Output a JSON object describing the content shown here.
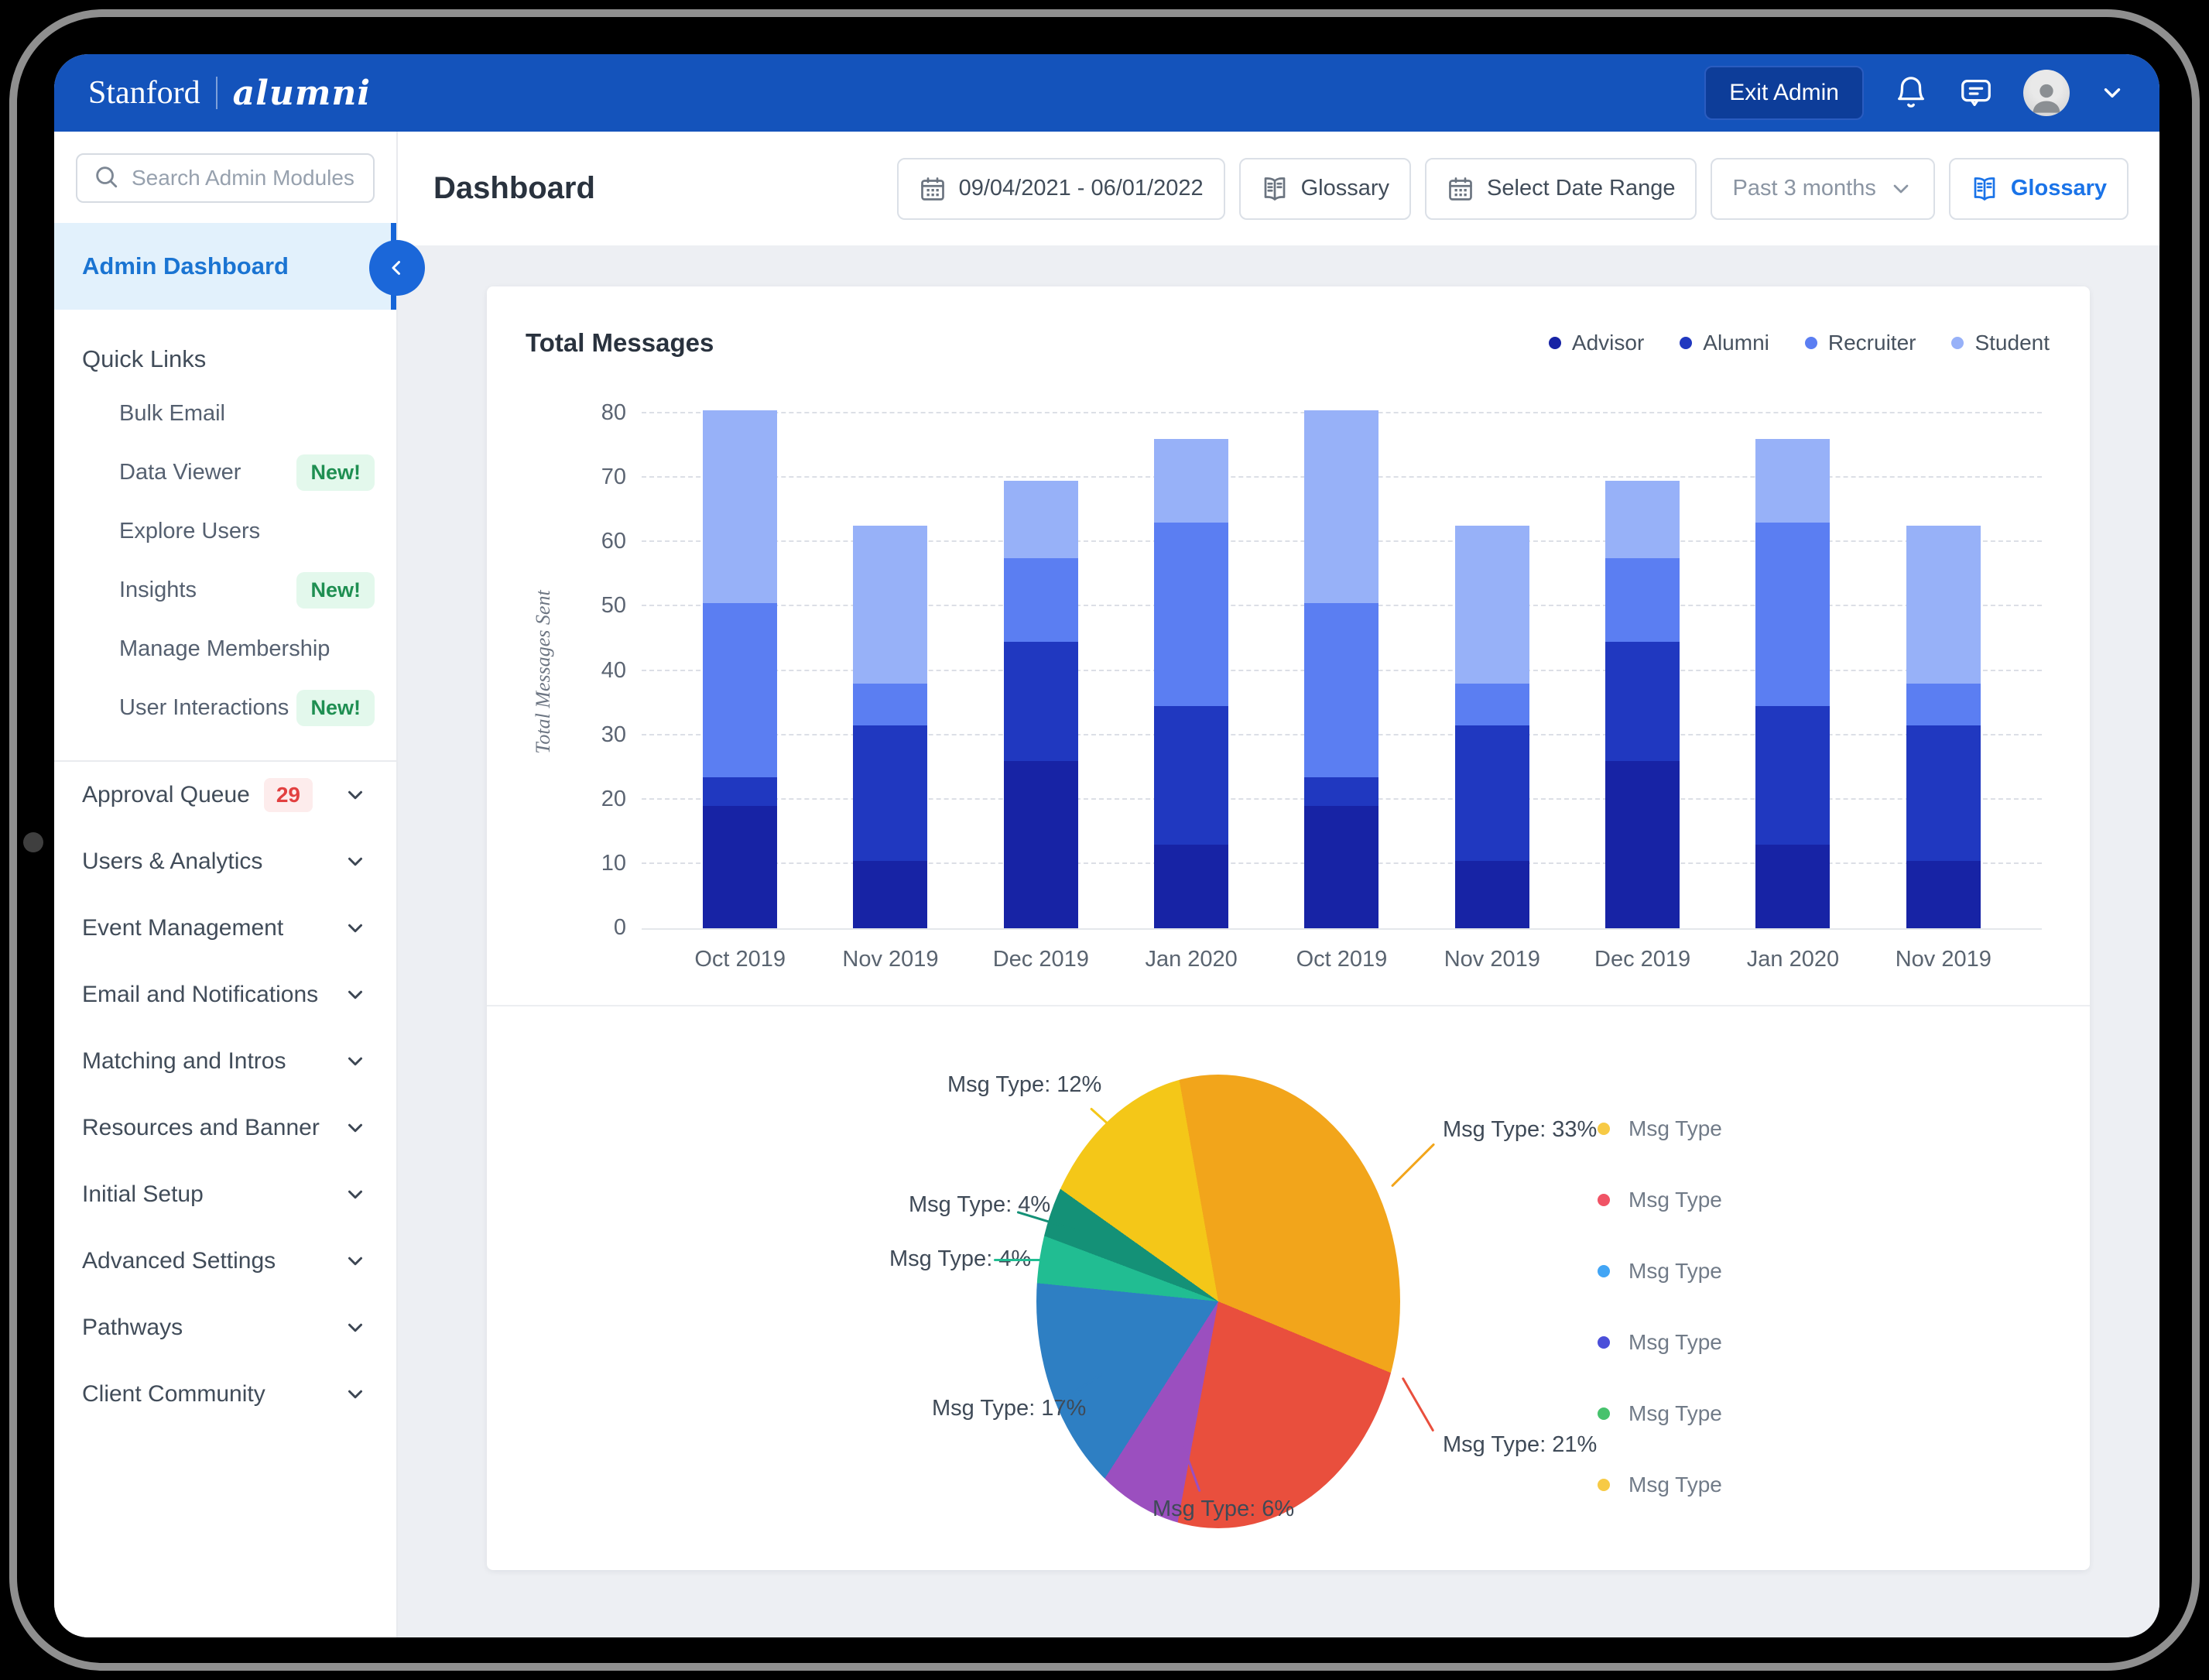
{
  "topbar": {
    "brand_primary": "Stanford",
    "brand_secondary": "alumni",
    "exit_admin_label": "Exit Admin"
  },
  "sidebar": {
    "search_placeholder": "Search Admin Modules",
    "active_item": "Admin Dashboard",
    "quick_links_header": "Quick Links",
    "quick_links": [
      {
        "label": "Bulk Email"
      },
      {
        "label": "Data Viewer",
        "badge": "New!"
      },
      {
        "label": "Explore Users"
      },
      {
        "label": "Insights",
        "badge": "New!"
      },
      {
        "label": "Manage Membership"
      },
      {
        "label": "User Interactions",
        "badge": "New!"
      }
    ],
    "sections": [
      {
        "label": "Approval Queue",
        "count": "29"
      },
      {
        "label": "Users & Analytics"
      },
      {
        "label": "Event Management"
      },
      {
        "label": "Email and Notifications"
      },
      {
        "label": "Matching and Intros"
      },
      {
        "label": "Resources and Banner"
      },
      {
        "label": "Initial Setup"
      },
      {
        "label": "Advanced Settings"
      },
      {
        "label": "Pathways"
      },
      {
        "label": "Client Community"
      }
    ]
  },
  "header": {
    "title": "Dashboard",
    "date_range_label": "09/04/2021 - 06/01/2022",
    "glossary_label": "Glossary",
    "select_date_range_label": "Select Date Range",
    "period_label": "Past 3 months",
    "glossary_primary_label": "Glossary"
  },
  "colors": {
    "topbar_blue": "#1453bb",
    "accent_blue": "#1565d8",
    "active_item_bg": "#e2f1fc",
    "badge_new_bg": "#e3f8ec",
    "badge_new_text": "#1f8f52",
    "badge_count_bg": "#fdecec",
    "badge_count_text": "#e24040",
    "content_bg": "#edeff3"
  },
  "chart_data": [
    {
      "type": "bar",
      "stacked": true,
      "title": "Total Messages",
      "ylabel": "Total Messages Sent",
      "ylim": [
        0,
        80
      ],
      "yticks": [
        0,
        10,
        20,
        30,
        40,
        50,
        60,
        70,
        80
      ],
      "grid": "dashed horizontal",
      "legend_position": "top-right",
      "categories": [
        "Oct 2019",
        "Nov 2019",
        "Dec 2019",
        "Jan 2020",
        "Oct 2019",
        "Nov 2019",
        "Dec 2019",
        "Jan 2020",
        "Nov 2019"
      ],
      "series": [
        {
          "name": "Advisor",
          "color": "#1723a5",
          "values": [
            19,
            10.5,
            26,
            13,
            19,
            10.5,
            26,
            13,
            10.5
          ]
        },
        {
          "name": "Alumni",
          "color": "#2038c0",
          "values": [
            4.5,
            21,
            18.5,
            21.5,
            4.5,
            21,
            18.5,
            21.5,
            21
          ]
        },
        {
          "name": "Recruiter",
          "color": "#5b7ef2",
          "values": [
            27,
            6.5,
            13,
            28.5,
            27,
            6.5,
            13,
            28.5,
            6.5
          ]
        },
        {
          "name": "Student",
          "color": "#97b1f8",
          "values": [
            30,
            24.5,
            12,
            13,
            30,
            24.5,
            12,
            13,
            24.5
          ]
        }
      ]
    },
    {
      "type": "pie",
      "start_angle_deg": -10,
      "slices": [
        {
          "label": "Msg Type",
          "pct": 33,
          "color": "#f2a51b",
          "callout": "Msg Type: 33%"
        },
        {
          "label": "Msg Type",
          "pct": 21,
          "color": "#e94f3d",
          "callout": "Msg Type: 21%"
        },
        {
          "label": "Msg Type",
          "pct": 6,
          "color": "#9b4fbf",
          "callout": "Msg Type: 6%"
        },
        {
          "label": "Msg Type",
          "pct": 17,
          "color": "#2e7fc3",
          "callout": "Msg Type: 17%"
        },
        {
          "label": "Msg Type",
          "pct": 4,
          "color": "#21bd92",
          "callout": "Msg Type: 4%"
        },
        {
          "label": "Msg Type",
          "pct": 4,
          "color": "#149177",
          "callout": "Msg Type: 4%"
        },
        {
          "label": "Msg Type",
          "pct": 12,
          "color": "#f4c718",
          "callout": "Msg Type: 12%"
        }
      ],
      "legend": [
        {
          "label": "Msg Type",
          "color": "#f7ca45"
        },
        {
          "label": "Msg Type",
          "color": "#f05365"
        },
        {
          "label": "Msg Type",
          "color": "#42a5f5"
        },
        {
          "label": "Msg Type",
          "color": "#4b4fd9"
        },
        {
          "label": "Msg Type",
          "color": "#47c26d"
        },
        {
          "label": "Msg Type",
          "color": "#f7ca45"
        }
      ]
    }
  ]
}
